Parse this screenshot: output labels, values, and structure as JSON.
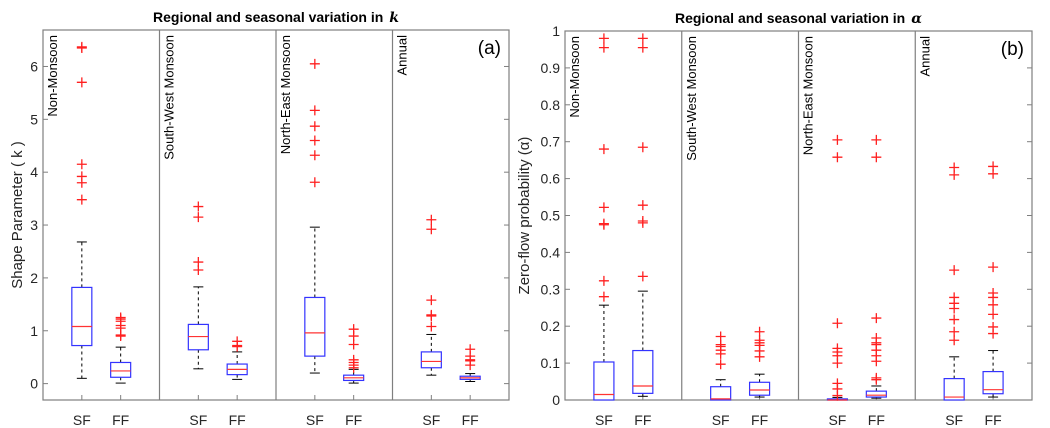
{
  "chart_data": [
    {
      "type": "box",
      "title": "Regional and seasonal variation in",
      "title_symbol": "k",
      "panel_label": "(a)",
      "ylabel": "Shape Parameter ( k )",
      "ylim": [
        -0.31,
        6.69
      ],
      "yticks": [
        0,
        1,
        2,
        3,
        4,
        5,
        6
      ],
      "tick_labels": [
        "SF",
        "FF",
        "SF",
        "FF",
        "SF",
        "FF",
        "SF",
        "FF"
      ],
      "sections": [
        "Non-Monsoon",
        "South-West Monsoon",
        "North-East Monsoon",
        "Annual"
      ],
      "boxes": [
        {
          "section": "Non-Monsoon",
          "cat": "SF",
          "lo": 0.1,
          "q1": 0.72,
          "med": 1.08,
          "q3": 1.82,
          "hi": 2.68,
          "outliers": [
            3.48,
            3.8,
            3.92,
            4.15,
            5.7,
            6.35,
            6.37
          ]
        },
        {
          "section": "Non-Monsoon",
          "cat": "FF",
          "lo": 0.01,
          "q1": 0.12,
          "med": 0.24,
          "q3": 0.4,
          "hi": 0.69,
          "outliers": [
            0.9,
            0.92,
            1.05,
            1.1,
            1.18,
            1.22,
            1.25
          ]
        },
        {
          "section": "South-West Monsoon",
          "cat": "SF",
          "lo": 0.28,
          "q1": 0.64,
          "med": 0.89,
          "q3": 1.12,
          "hi": 1.83,
          "outliers": [
            2.15,
            2.3,
            3.15,
            3.35
          ]
        },
        {
          "section": "South-West Monsoon",
          "cat": "FF",
          "lo": 0.08,
          "q1": 0.17,
          "med": 0.27,
          "q3": 0.37,
          "hi": 0.6,
          "outliers": [
            0.7,
            0.72,
            0.8
          ]
        },
        {
          "section": "North-East Monsoon",
          "cat": "SF",
          "lo": 0.2,
          "q1": 0.52,
          "med": 0.96,
          "q3": 1.63,
          "hi": 2.96,
          "outliers": [
            3.81,
            4.32,
            4.6,
            4.87,
            5.17,
            6.05
          ]
        },
        {
          "section": "North-East Monsoon",
          "cat": "FF",
          "lo": 0.01,
          "q1": 0.06,
          "med": 0.11,
          "q3": 0.16,
          "hi": 0.27,
          "outliers": [
            0.3,
            0.35,
            0.4,
            0.45,
            0.74,
            0.9,
            1.03
          ]
        },
        {
          "section": "Annual",
          "cat": "SF",
          "lo": 0.16,
          "q1": 0.3,
          "med": 0.42,
          "q3": 0.6,
          "hi": 0.93,
          "outliers": [
            1.08,
            1.28,
            1.3,
            1.58,
            2.92,
            3.1
          ]
        },
        {
          "section": "Annual",
          "cat": "FF",
          "lo": 0.04,
          "q1": 0.08,
          "med": 0.11,
          "q3": 0.14,
          "hi": 0.19,
          "outliers": [
            0.35,
            0.43,
            0.45,
            0.52,
            0.65
          ]
        }
      ]
    },
    {
      "type": "box",
      "title": "Regional and seasonal variation in",
      "title_symbol": "α",
      "panel_label": "(b)",
      "ylabel": "Zero-flow probability (α)",
      "ylim": [
        0,
        1
      ],
      "yticks": [
        0,
        0.1,
        0.2,
        0.3,
        0.4,
        0.5,
        0.6,
        0.7,
        0.8,
        0.9,
        1
      ],
      "tick_labels": [
        "SF",
        "FF",
        "SF",
        "FF",
        "SF",
        "FF",
        "SF",
        "FF"
      ],
      "sections": [
        "Non-Monsoon",
        "South-West Monsoon",
        "North-East Monsoon",
        "Annual"
      ],
      "boxes": [
        {
          "section": "Non-Monsoon",
          "cat": "SF",
          "lo": 0,
          "q1": 0,
          "med": 0.015,
          "q3": 0.103,
          "hi": 0.257,
          "outliers": [
            0.28,
            0.323,
            0.475,
            0.478,
            0.522,
            0.68,
            0.955,
            0.98
          ]
        },
        {
          "section": "Non-Monsoon",
          "cat": "FF",
          "lo": 0.01,
          "q1": 0.018,
          "med": 0.038,
          "q3": 0.134,
          "hi": 0.295,
          "outliers": [
            0.335,
            0.48,
            0.485,
            0.528,
            0.685,
            0.955,
            0.98
          ]
        },
        {
          "section": "South-West Monsoon",
          "cat": "SF",
          "lo": 0,
          "q1": 0,
          "med": 0.003,
          "q3": 0.036,
          "hi": 0.055,
          "outliers": [
            0.097,
            0.125,
            0.135,
            0.145,
            0.15,
            0.172
          ]
        },
        {
          "section": "South-West Monsoon",
          "cat": "FF",
          "lo": 0.008,
          "q1": 0.013,
          "med": 0.027,
          "q3": 0.048,
          "hi": 0.07,
          "outliers": [
            0.117,
            0.133,
            0.148,
            0.155,
            0.162,
            0.185
          ]
        },
        {
          "section": "North-East Monsoon",
          "cat": "SF",
          "lo": 0,
          "q1": 0,
          "med": 0,
          "q3": 0.003,
          "hi": 0.007,
          "outliers": [
            0.012,
            0.03,
            0.045,
            0.1,
            0.12,
            0.13,
            0.14,
            0.208,
            0.658,
            0.705
          ]
        },
        {
          "section": "North-East Monsoon",
          "cat": "FF",
          "lo": 0.005,
          "q1": 0.008,
          "med": 0.013,
          "q3": 0.024,
          "hi": 0.038,
          "outliers": [
            0.055,
            0.06,
            0.105,
            0.12,
            0.135,
            0.15,
            0.155,
            0.168,
            0.222,
            0.658,
            0.705
          ]
        },
        {
          "section": "Annual",
          "cat": "SF",
          "lo": 0,
          "q1": 0,
          "med": 0.008,
          "q3": 0.058,
          "hi": 0.117,
          "outliers": [
            0.162,
            0.185,
            0.218,
            0.248,
            0.262,
            0.278,
            0.352,
            0.61,
            0.63
          ]
        },
        {
          "section": "Annual",
          "cat": "FF",
          "lo": 0.008,
          "q1": 0.017,
          "med": 0.028,
          "q3": 0.077,
          "hi": 0.134,
          "outliers": [
            0.18,
            0.198,
            0.232,
            0.258,
            0.278,
            0.29,
            0.36,
            0.613,
            0.633
          ]
        }
      ]
    }
  ],
  "colors": {
    "box": "#3333ff",
    "median": "#ff3333",
    "outlier": "#ff2020",
    "whisker": "#000000",
    "axis": "#7f7f7f"
  }
}
